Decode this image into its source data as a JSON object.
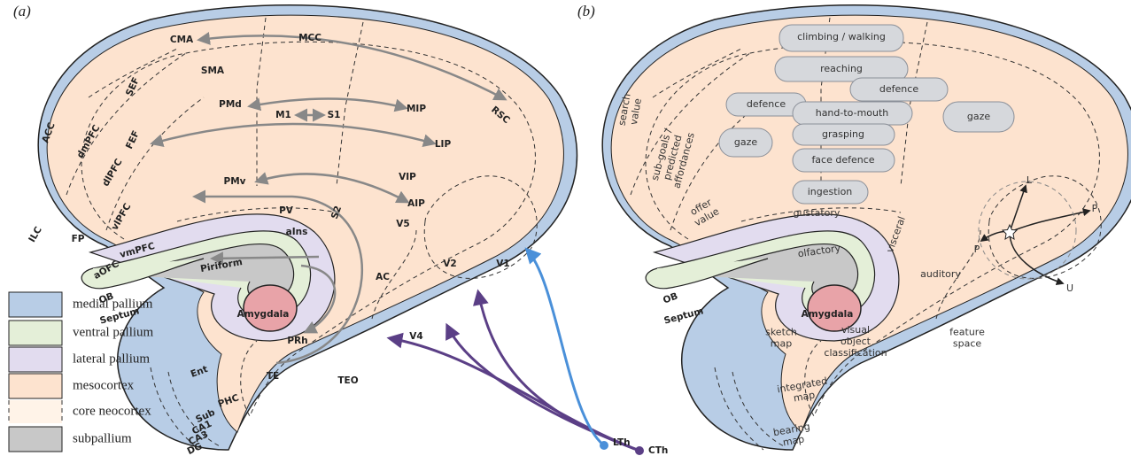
{
  "panel_a": {
    "label": "(a)",
    "regions": [
      "CMA",
      "MCC",
      "SMA",
      "SEF",
      "PMd",
      "M1",
      "S1",
      "MIP",
      "RSC",
      "ACC",
      "dmPFC",
      "FEF",
      "LIP",
      "dlPFC",
      "VIP",
      "PMv",
      "AIP",
      "vlPFC",
      "PV",
      "S2",
      "V5",
      "FP",
      "vmPFC",
      "aIns",
      "V2",
      "V1",
      "ILC",
      "aOFC",
      "Piriform",
      "OB",
      "Septum",
      "Amygdala",
      "AC",
      "PRh",
      "V4",
      "Ent",
      "TE",
      "TEO",
      "PHC",
      "Sub",
      "CA1",
      "CA3",
      "DG"
    ],
    "inputs": [
      "LTh",
      "CTh"
    ]
  },
  "panel_b": {
    "label": "(b)",
    "actions": [
      "climbing / walking",
      "reaching",
      "defence",
      "defence",
      "gaze",
      "hand-to-mouth",
      "grasping",
      "gaze",
      "face defence",
      "ingestion"
    ],
    "values": [
      [
        "search",
        "value"
      ],
      [
        "sub-goals /",
        "predicted",
        "affordances"
      ],
      [
        "offer",
        "value"
      ]
    ],
    "senses": [
      "gustatory",
      "visceral",
      "olfactory",
      "auditory"
    ],
    "structures": [
      "OB",
      "Septum",
      "Amygdala"
    ],
    "features": [
      [
        "visual",
        "object",
        "classification"
      ],
      [
        "feature",
        "space"
      ]
    ],
    "maps": [
      [
        "sketch",
        "map"
      ],
      [
        "integrated",
        "map"
      ],
      [
        "bearing",
        "map"
      ]
    ],
    "directions": [
      "L",
      "P",
      "P",
      "U"
    ]
  },
  "legend": [
    "medial pallium",
    "ventral pallium",
    "lateral pallium",
    "mesocortex",
    "core neocortex",
    "subpallium"
  ]
}
